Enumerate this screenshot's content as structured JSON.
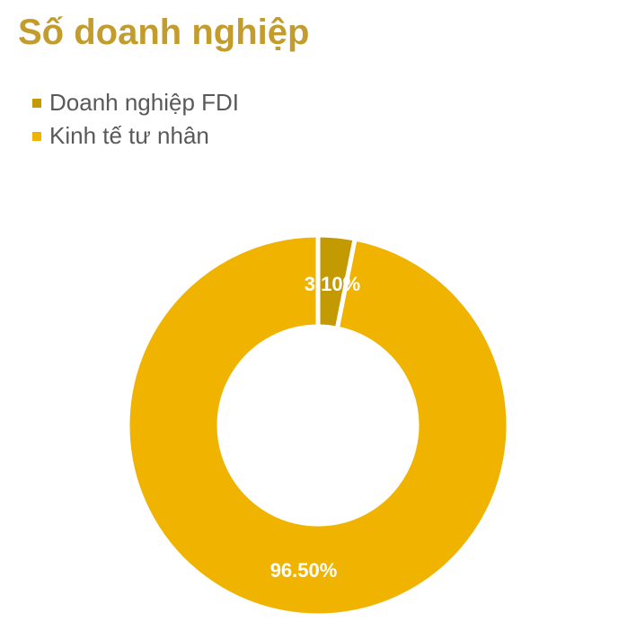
{
  "chart_data": {
    "type": "pie",
    "title": "Số doanh nghiệp",
    "categories": [
      "Doanh nghiệp FDI",
      "Kinh tế tư nhân"
    ],
    "values": [
      3.1,
      96.5
    ],
    "data_labels": [
      "3.10%",
      "96.50%"
    ],
    "colors": [
      "#c39a02",
      "#efb300"
    ],
    "legend_position": "top-left",
    "donut": true
  }
}
